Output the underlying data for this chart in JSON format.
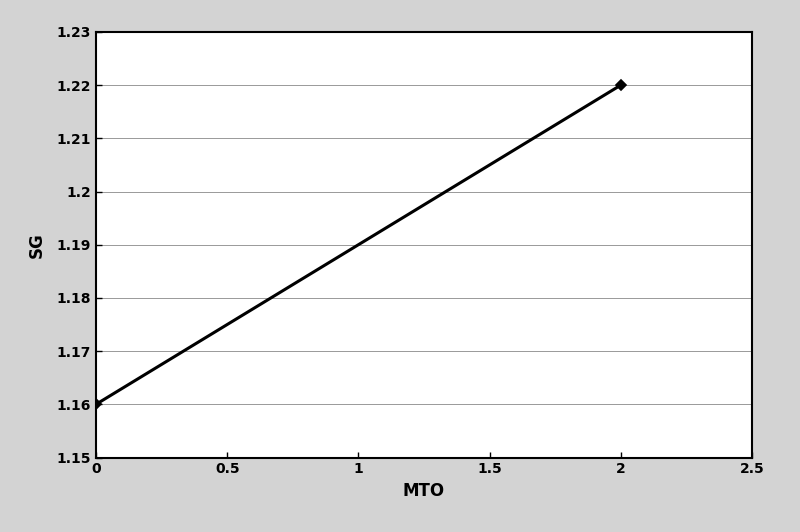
{
  "x": [
    0,
    2
  ],
  "y": [
    1.16,
    1.22
  ],
  "xlabel": "MTO",
  "ylabel": "SG",
  "xlim": [
    0,
    2.5
  ],
  "ylim": [
    1.15,
    1.23
  ],
  "xticks": [
    0,
    0.5,
    1,
    1.5,
    2,
    2.5
  ],
  "yticks": [
    1.15,
    1.16,
    1.17,
    1.18,
    1.19,
    1.2,
    1.21,
    1.22,
    1.23
  ],
  "ytick_labels": [
    "1.15",
    "1.16",
    "1.17",
    "1.18",
    "1.19",
    "1.2",
    "1.21",
    "1.22",
    "1.23"
  ],
  "xtick_labels": [
    "0",
    "0.5",
    "1",
    "1.5",
    "2",
    "2.5"
  ],
  "line_color": "#000000",
  "line_width": 2.2,
  "marker": "D",
  "marker_size": 5,
  "marker_color": "#000000",
  "grid_color": "#999999",
  "grid_linewidth": 0.7,
  "background_color": "#ffffff",
  "outer_bg_color": "#d3d3d3",
  "border_color": "#000000",
  "xlabel_fontsize": 12,
  "ylabel_fontsize": 12,
  "tick_fontsize": 10,
  "label_fontweight": "bold"
}
